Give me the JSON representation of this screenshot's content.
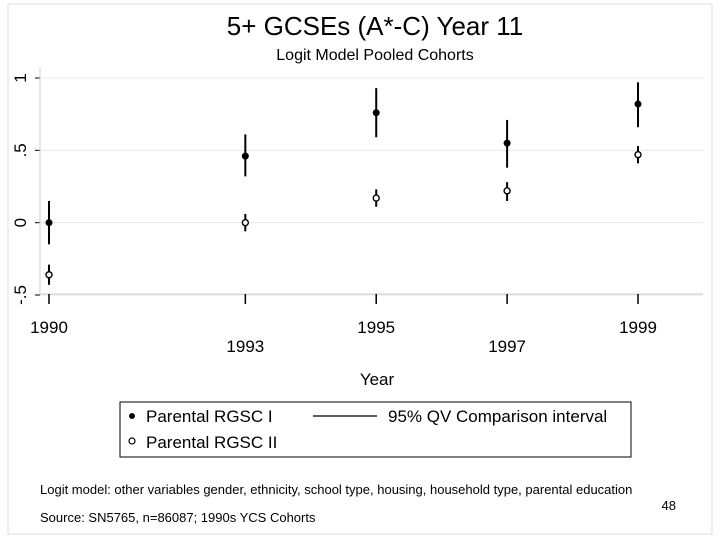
{
  "chart_data": {
    "type": "scatter",
    "title": "5+ GCSEs (A*-C) Year 11",
    "subtitle": "Logit Model Pooled Cohorts",
    "xlabel": "Year",
    "ylabel": "",
    "xlim": [
      1990,
      1999.5
    ],
    "ylim": [
      -0.5,
      1
    ],
    "x_ticks": [
      {
        "value": 1990,
        "label": "1990",
        "row": "upper"
      },
      {
        "value": 1993,
        "label": "1993",
        "row": "lower"
      },
      {
        "value": 1995,
        "label": "1995",
        "row": "upper"
      },
      {
        "value": 1997,
        "label": "1997",
        "row": "lower"
      },
      {
        "value": 1999,
        "label": "1999",
        "row": "upper"
      }
    ],
    "y_ticks": [
      {
        "value": -0.5,
        "label": "-.5"
      },
      {
        "value": 0,
        "label": "0"
      },
      {
        "value": 0.5,
        "label": ".5"
      },
      {
        "value": 1,
        "label": "1"
      }
    ],
    "series": [
      {
        "name": "Parental RGSC I",
        "marker": "filled-circle",
        "points": [
          {
            "x": 1990,
            "y": 0.0,
            "lo": -0.15,
            "hi": 0.15
          },
          {
            "x": 1993,
            "y": 0.46,
            "lo": 0.32,
            "hi": 0.61
          },
          {
            "x": 1995,
            "y": 0.76,
            "lo": 0.59,
            "hi": 0.93
          },
          {
            "x": 1997,
            "y": 0.55,
            "lo": 0.38,
            "hi": 0.71
          },
          {
            "x": 1999,
            "y": 0.82,
            "lo": 0.66,
            "hi": 0.97
          }
        ]
      },
      {
        "name": "Parental RGSC II",
        "marker": "hollow-circle",
        "points": [
          {
            "x": 1990,
            "y": -0.36,
            "lo": -0.43,
            "hi": -0.29
          },
          {
            "x": 1993,
            "y": 0.0,
            "lo": -0.06,
            "hi": 0.06
          },
          {
            "x": 1995,
            "y": 0.17,
            "lo": 0.11,
            "hi": 0.23
          },
          {
            "x": 1997,
            "y": 0.22,
            "lo": 0.15,
            "hi": 0.28
          },
          {
            "x": 1999,
            "y": 0.47,
            "lo": 0.41,
            "hi": 0.53
          }
        ]
      }
    ],
    "legend": {
      "placement": "bottom",
      "entries": [
        {
          "label": "Parental RGSC I",
          "symbol": "filled-circle"
        },
        {
          "label": "95% QV Comparison interval",
          "symbol": "line"
        },
        {
          "label": "Parental RGSC II",
          "symbol": "hollow-circle"
        }
      ]
    },
    "grid": true,
    "notes": [
      "Logit model: other variables gender, ethnicity, school type, housing, household type, parental education",
      "Source: SN5765, n=86087; 1990s YCS Cohorts"
    ]
  },
  "page_number": "48",
  "colors": {
    "plot_background": "#ffffff",
    "grid": "#e4e8ea",
    "ink": "#000000",
    "frame": "#cfcfcf"
  }
}
